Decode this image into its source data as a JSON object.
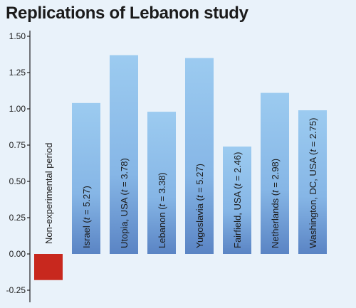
{
  "chart_data": {
    "type": "bar",
    "title": "Replications of Lebanon study",
    "xlabel": "",
    "ylabel": "",
    "ylim": [
      -0.3,
      1.55
    ],
    "yticks": [
      "1.50",
      "1.25",
      "1.00",
      "0.75",
      "0.50",
      "0.25",
      "0.00",
      "-0.25"
    ],
    "ytick_values": [
      1.5,
      1.25,
      1.0,
      0.75,
      0.5,
      0.25,
      0.0,
      -0.25
    ],
    "grid": false,
    "categories": [
      "Non-experimental period",
      "Israel (t = 5.27)",
      "Utopia, USA (t = 3.78)",
      "Lebanon (t = 3.38)",
      "Yugoslavia (t = 5.27)",
      "Fairfield, USA (t = 2.46)",
      "Netherlands (t = 2.98)",
      "Washington, DC, USA (t = 2.75)"
    ],
    "label_parts": [
      {
        "pre": "Non-experimental period",
        "t": "",
        "post": ""
      },
      {
        "pre": "Israel (",
        "t": "t",
        "post": " = 5.27)"
      },
      {
        "pre": "Utopia, USA (",
        "t": "t",
        "post": " = 3.78)"
      },
      {
        "pre": "Lebanon (",
        "t": "t",
        "post": " = 3.38)"
      },
      {
        "pre": "Yugoslavia (",
        "t": "t",
        "post": " = 5.27)"
      },
      {
        "pre": "Fairfield, USA (",
        "t": "t",
        "post": " = 2.46)"
      },
      {
        "pre": "Netherlands (",
        "t": "t",
        "post": " = 2.98)"
      },
      {
        "pre": "Washington, DC, USA (",
        "t": "t",
        "post": " = 2.75)"
      }
    ],
    "values": [
      -0.18,
      1.04,
      1.37,
      0.98,
      1.35,
      0.74,
      1.11,
      0.99
    ],
    "colors": {
      "negative": "#c8281e",
      "positive_top": "#9ccbf0",
      "positive_bottom": "#5a84c4",
      "axis": "#222222",
      "background": "#e9f2fa"
    }
  }
}
